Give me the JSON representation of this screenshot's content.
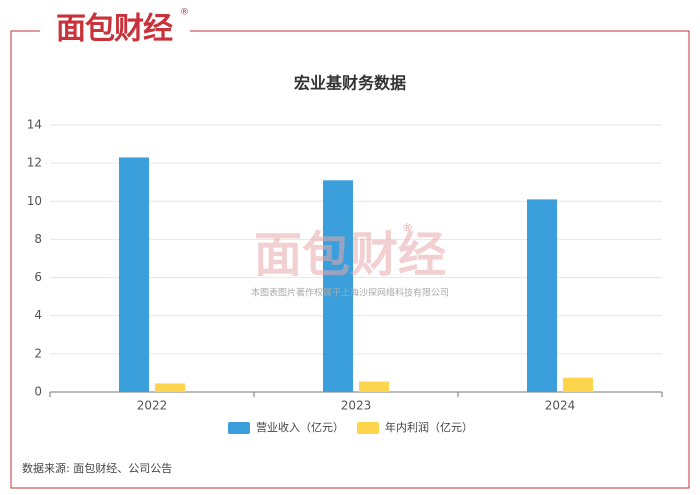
{
  "header": {
    "logo": "面包财经",
    "logo_mark": "®"
  },
  "chart_data": {
    "type": "bar",
    "title": "宏业基财务数据",
    "categories": [
      "2022",
      "2023",
      "2024"
    ],
    "series": [
      {
        "name": "营业收入（亿元）",
        "color": "#3a9fdb",
        "values": [
          12.3,
          11.1,
          10.1
        ]
      },
      {
        "name": "年内利润（亿元）",
        "color": "#fdd54c",
        "values": [
          0.45,
          0.55,
          0.75
        ]
      }
    ],
    "ylim": [
      0,
      14
    ],
    "yticks": [
      0,
      2,
      4,
      6,
      8,
      10,
      12,
      14
    ],
    "grid": true,
    "legend": "bottom"
  },
  "watermark": {
    "logo": "面包财经",
    "logo_mark": "®",
    "copyright": "本图表图片著作权属于上海沙探网络科技有限公司"
  },
  "source": "数据来源: 面包财经、公司公告"
}
